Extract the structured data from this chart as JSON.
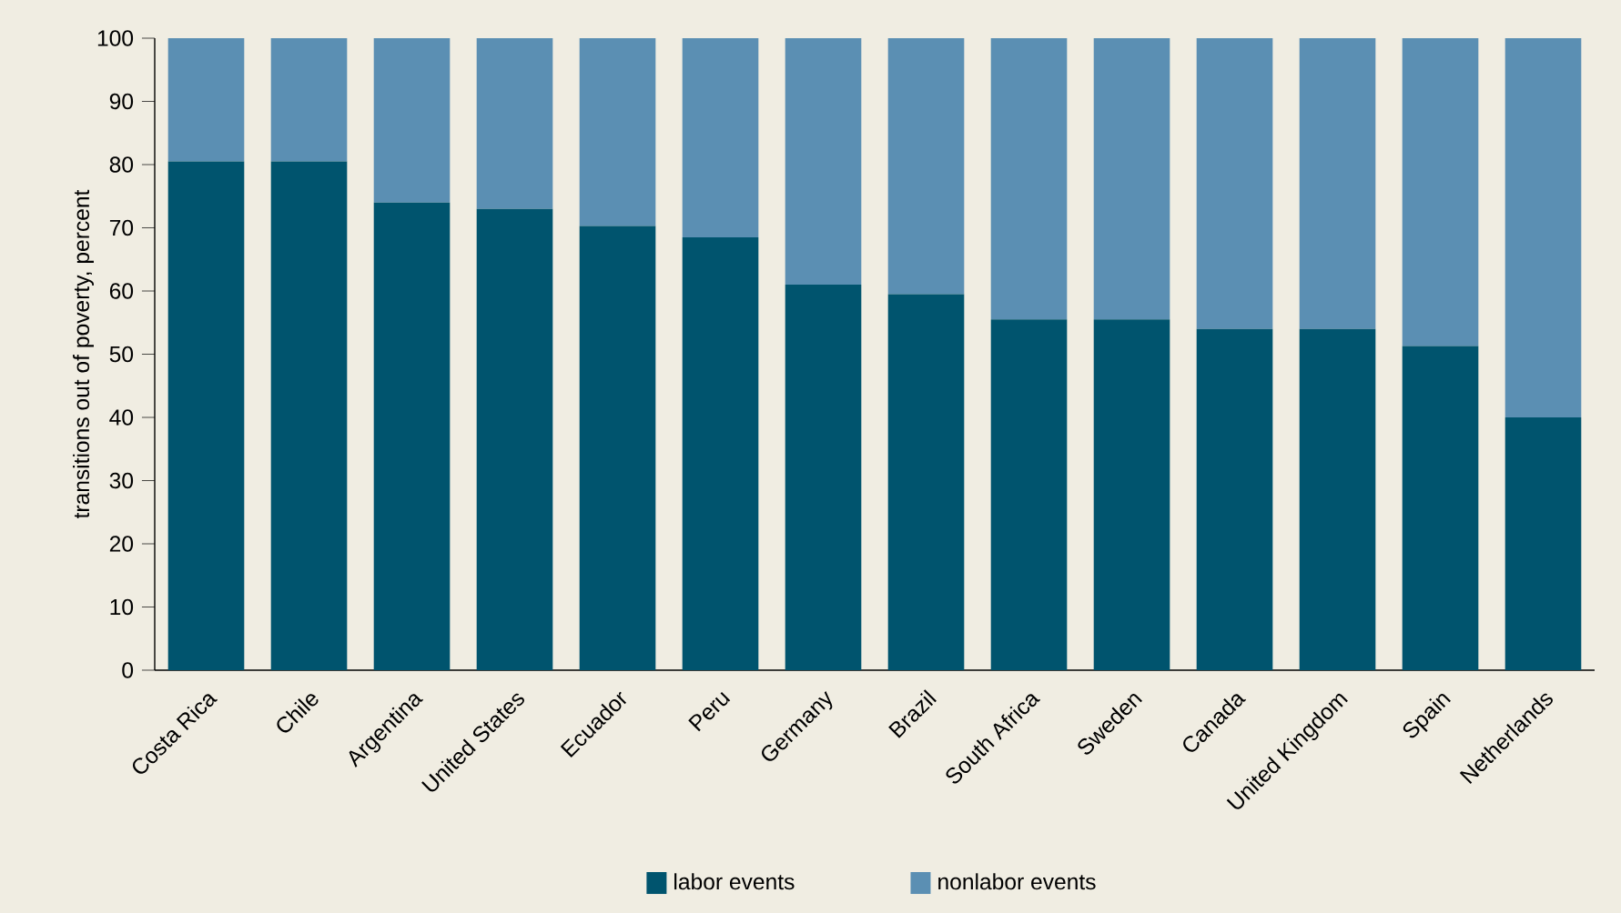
{
  "chart_data": {
    "type": "bar",
    "stacked": true,
    "ylabel": "transitions out of poverty, percent",
    "categories": [
      "Costa Rica",
      "Chile",
      "Argentina",
      "United States",
      "Ecuador",
      "Peru",
      "Germany",
      "Brazil",
      "South Africa",
      "Sweden",
      "Canada",
      "United Kingdom",
      "Spain",
      "Netherlands"
    ],
    "series": [
      {
        "name": "labor events",
        "color": "#00546e",
        "values": [
          80.5,
          80.5,
          74,
          73,
          70.3,
          68.5,
          61,
          59.5,
          55.5,
          55.5,
          54,
          54,
          51.3,
          40
        ]
      },
      {
        "name": "nonlabor events",
        "color": "#5b8fb3",
        "values": [
          19.5,
          19.5,
          26,
          27,
          29.7,
          31.5,
          39,
          40.5,
          44.5,
          44.5,
          46,
          46,
          48.7,
          60
        ]
      }
    ],
    "ylim": [
      0,
      100
    ],
    "yticks": [
      0,
      10,
      20,
      30,
      40,
      50,
      60,
      70,
      80,
      90,
      100
    ],
    "grid": false,
    "legend": "bottom"
  }
}
